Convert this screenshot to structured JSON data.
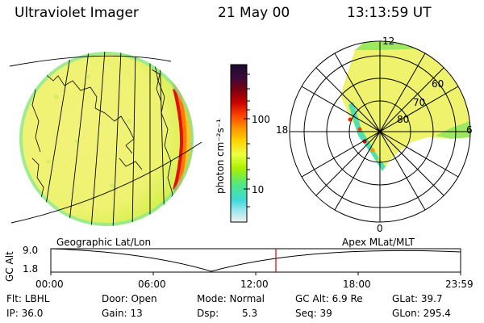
{
  "header": {
    "instrument": "Ultraviolet Imager",
    "date": "21 May 00",
    "time": "13:13:59 UT"
  },
  "colorbar": {
    "unit_label": "photon cm⁻²s⁻¹",
    "tick_100": "100",
    "tick_10": "10",
    "colors_top_to_bottom": [
      "#1a0a2e",
      "#3a0a3a",
      "#7a0010",
      "#c80000",
      "#ff4000",
      "#ff9000",
      "#ffd000",
      "#f0ff40",
      "#a8f000",
      "#50e880",
      "#40d8d8",
      "#a0e8f0",
      "#f0f0f0"
    ]
  },
  "polar": {
    "label_top": "12",
    "label_left": "18",
    "label_right": "6",
    "label_bottom": "0",
    "lat_60": "60",
    "lat_70": "70",
    "lat_80": "80"
  },
  "timeline": {
    "left_title": "Geographic Lat/Lon",
    "right_title": "Apex MLat/MLT",
    "y_axis_label": "GC Alt",
    "y_top": "9.0",
    "y_bottom": "1.8",
    "x_ticks": [
      "00:00",
      "06:00",
      "12:00",
      "18:00",
      "23:59"
    ],
    "marker_color": "#dd0000"
  },
  "info": {
    "flt": "Flt: LBHL",
    "door": "Door: Open",
    "mode": "Mode: Normal",
    "gc_alt": "GC Alt: 6.9 Re",
    "glat": "GLat:  39.7",
    "ip": "IP: 36.0",
    "gain": "Gain: 13",
    "dsp_label": "Dsp:",
    "dsp_value": "5.3",
    "seq": "Seq: 39",
    "glon": "GLon: 295.4"
  }
}
